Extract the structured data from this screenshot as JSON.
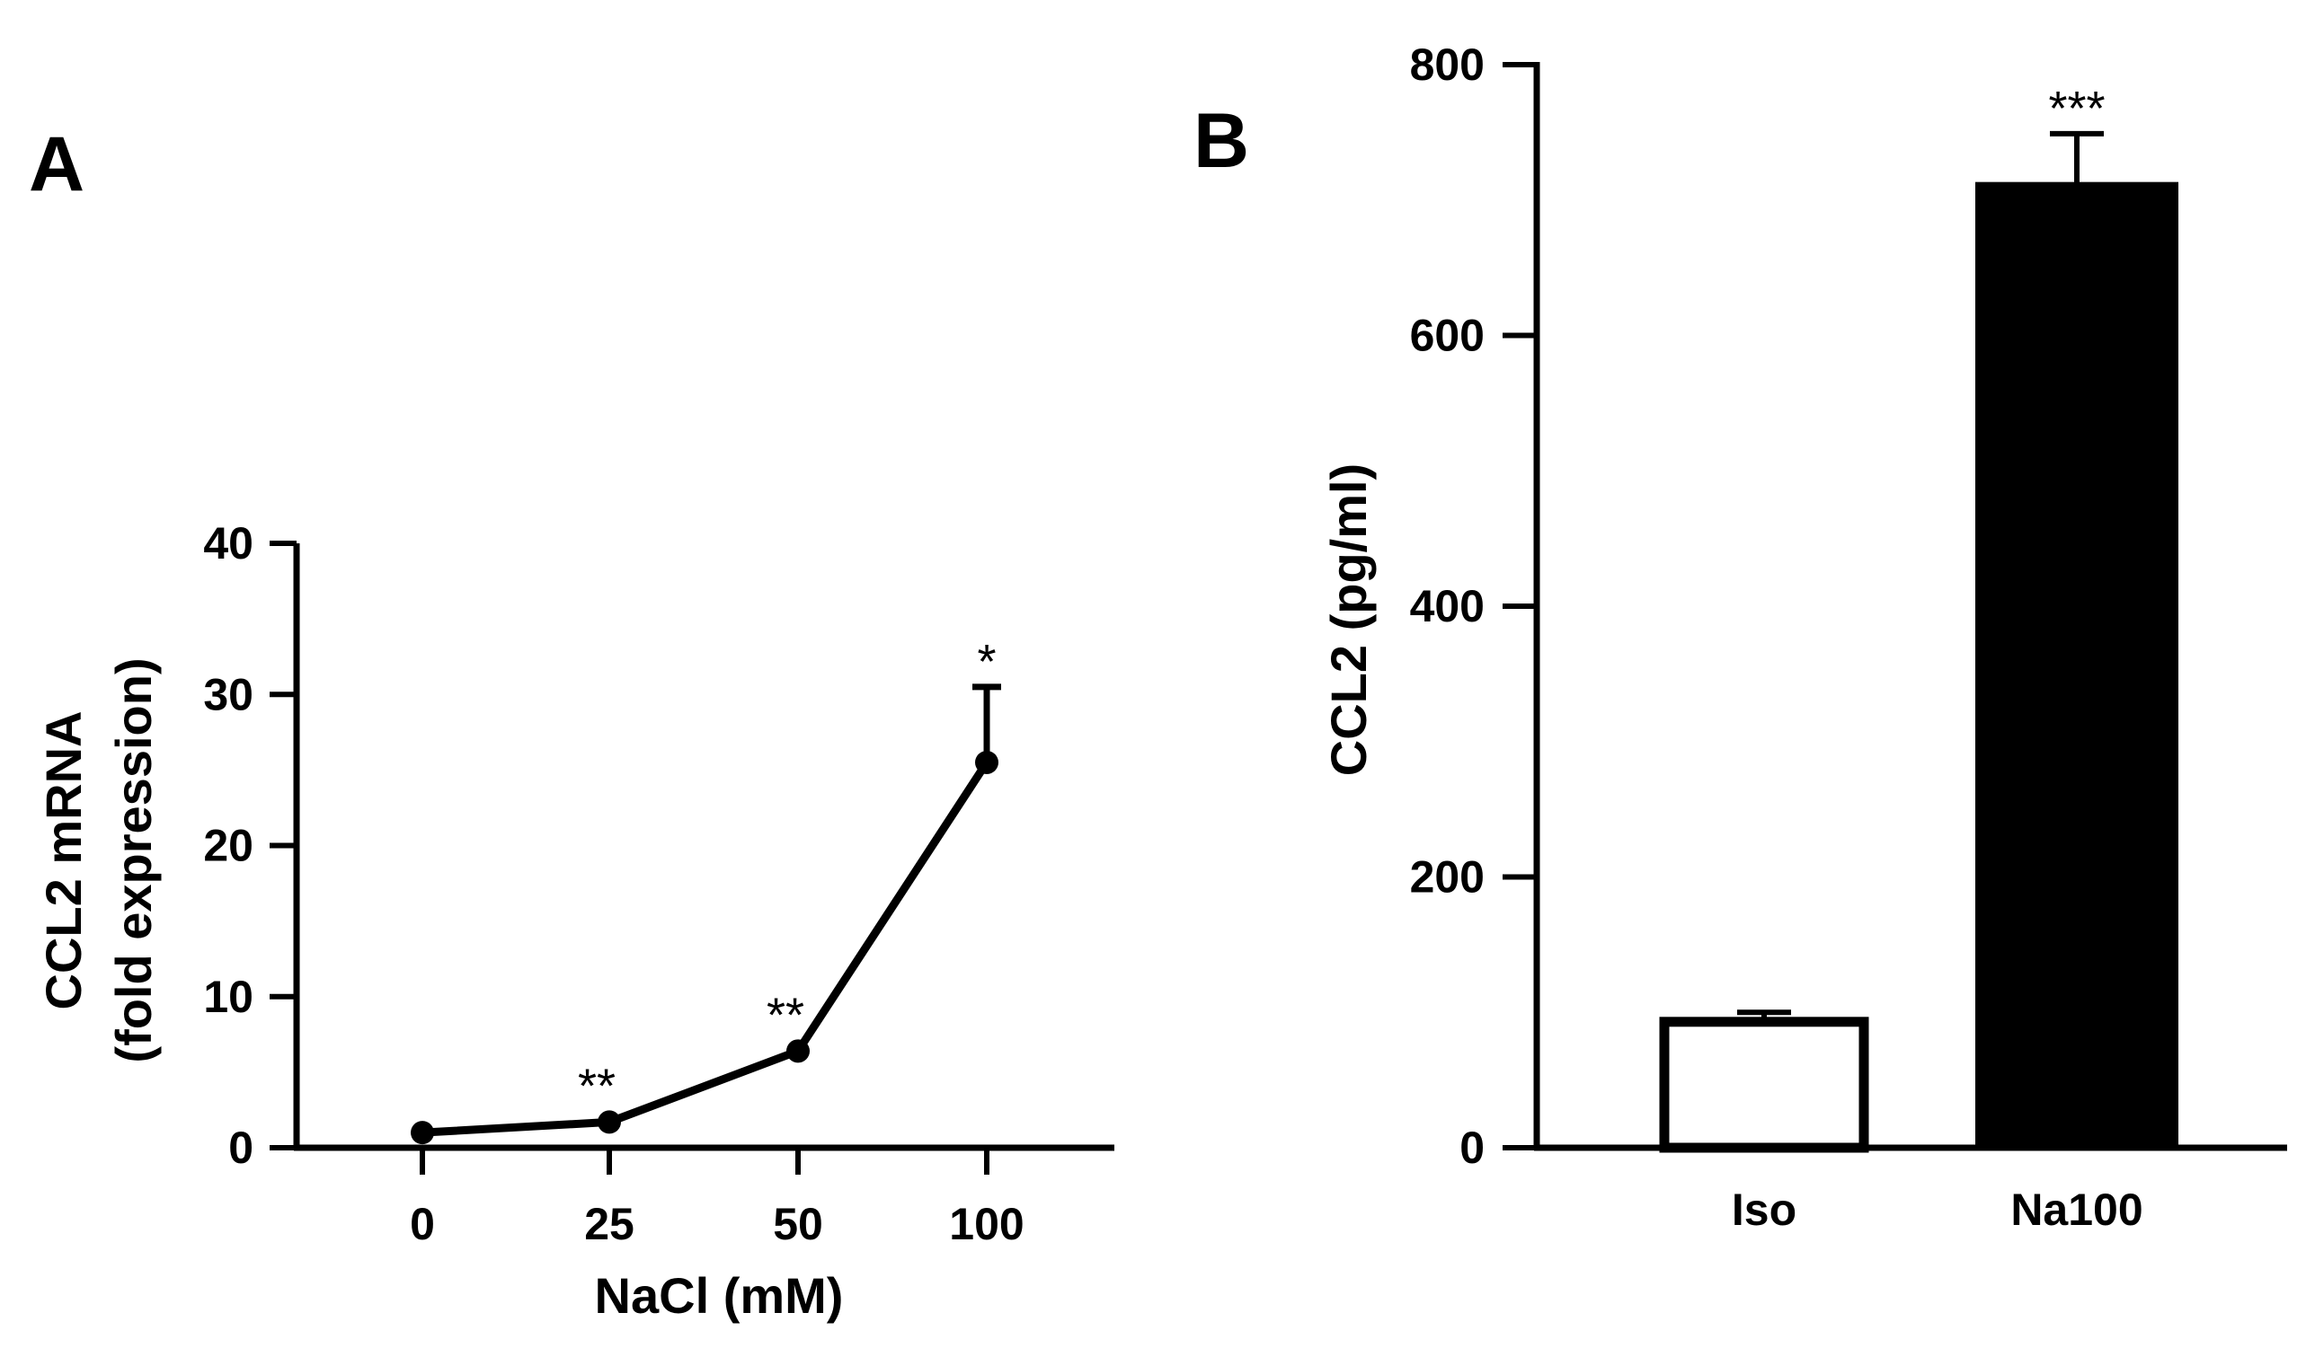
{
  "chart_data": [
    {
      "panel": "A",
      "type": "line",
      "xlabel": "NaCl (mM)",
      "ylabel_lines": [
        "CCL2 mRNA",
        "(fold expression)"
      ],
      "ylim": [
        0,
        40
      ],
      "yticks": [
        0,
        10,
        20,
        30,
        40
      ],
      "categories": [
        "0",
        "25",
        "50",
        "100"
      ],
      "values": [
        1.0,
        1.7,
        6.4,
        25.5
      ],
      "errors": [
        0,
        0,
        0,
        5.0
      ],
      "annotations": [
        "",
        "**",
        "**",
        "*"
      ]
    },
    {
      "panel": "B",
      "type": "bar",
      "xlabel": "",
      "ylabel": "CCL2 (pg/ml)",
      "ylim": [
        0,
        800
      ],
      "yticks": [
        0,
        200,
        400,
        600,
        800
      ],
      "categories": [
        "Iso",
        "Na100"
      ],
      "values": [
        93,
        712
      ],
      "errors": [
        7,
        37
      ],
      "fills": [
        "#ffffff",
        "#000000"
      ],
      "annotations": [
        "",
        "***"
      ]
    }
  ]
}
